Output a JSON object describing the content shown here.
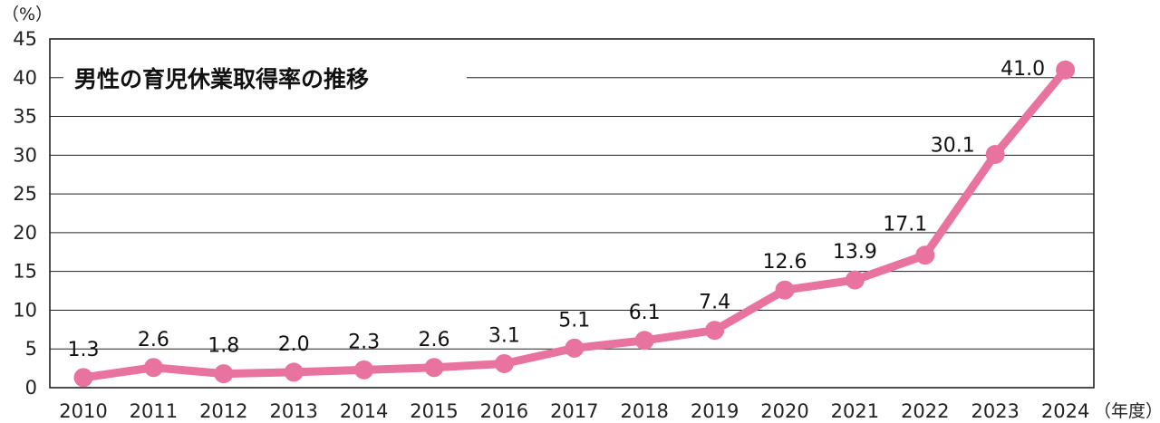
{
  "chart_data": {
    "type": "line",
    "title": "男性の育児休業取得率の推移",
    "y_unit": "（%）",
    "x_unit": "（年度）",
    "categories": [
      "2010",
      "2011",
      "2012",
      "2013",
      "2014",
      "2015",
      "2016",
      "2017",
      "2018",
      "2019",
      "2020",
      "2021",
      "2022",
      "2023",
      "2024"
    ],
    "values": [
      1.3,
      2.6,
      1.8,
      2.0,
      2.3,
      2.6,
      3.1,
      5.1,
      6.1,
      7.4,
      12.6,
      13.9,
      17.1,
      30.1,
      41.0
    ],
    "value_labels": [
      "1.3",
      "2.6",
      "1.8",
      "2.0",
      "2.3",
      "2.6",
      "3.1",
      "5.1",
      "6.1",
      "7.4",
      "12.6",
      "13.9",
      "17.1",
      "30.1",
      "41.0"
    ],
    "yticks": [
      "0",
      "5",
      "10",
      "15",
      "20",
      "25",
      "30",
      "35",
      "40",
      "45"
    ],
    "ylim": [
      0,
      45
    ],
    "grid": true,
    "legend": "none",
    "line_color": "#e8739f",
    "grid_color": "#222222"
  }
}
